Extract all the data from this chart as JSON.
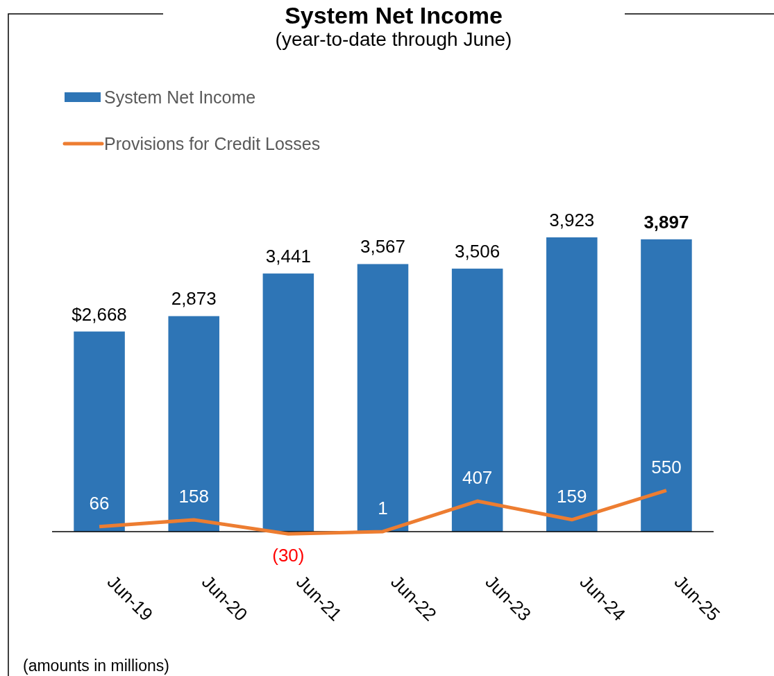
{
  "chart_data": {
    "type": "bar",
    "title": "System Net Income",
    "subtitle": "(year-to-date through June)",
    "categories": [
      "Jun-19",
      "Jun-20",
      "Jun-21",
      "Jun-22",
      "Jun-23",
      "Jun-24",
      "Jun-25"
    ],
    "series": [
      {
        "name": "System Net Income",
        "color": "#2e75b6",
        "values": [
          2668,
          2873,
          3441,
          3567,
          3506,
          3923,
          3897
        ],
        "value_labels": [
          "$2,668",
          "2,873",
          "3,441",
          "3,567",
          "3,506",
          "3,923",
          "3,897"
        ]
      },
      {
        "name": "Provisions for Credit Losses",
        "type": "line",
        "color": "#ed7d31",
        "values": [
          66,
          158,
          -30,
          1,
          407,
          159,
          550
        ],
        "value_labels": [
          "66",
          "158",
          "(30)",
          "1",
          "407",
          "159",
          "550"
        ]
      }
    ],
    "legend": "top left",
    "marker": "none",
    "line_style": "solid",
    "annotations": [
      "(amounts in millions)"
    ]
  }
}
